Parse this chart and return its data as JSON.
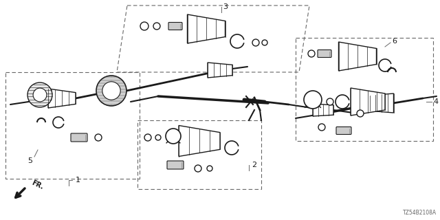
{
  "bg_color": "#ffffff",
  "diagram_code": "TZ54B2108A",
  "line_color": "#1a1a1a",
  "gray": "#888888",
  "dashed_color": "#666666"
}
